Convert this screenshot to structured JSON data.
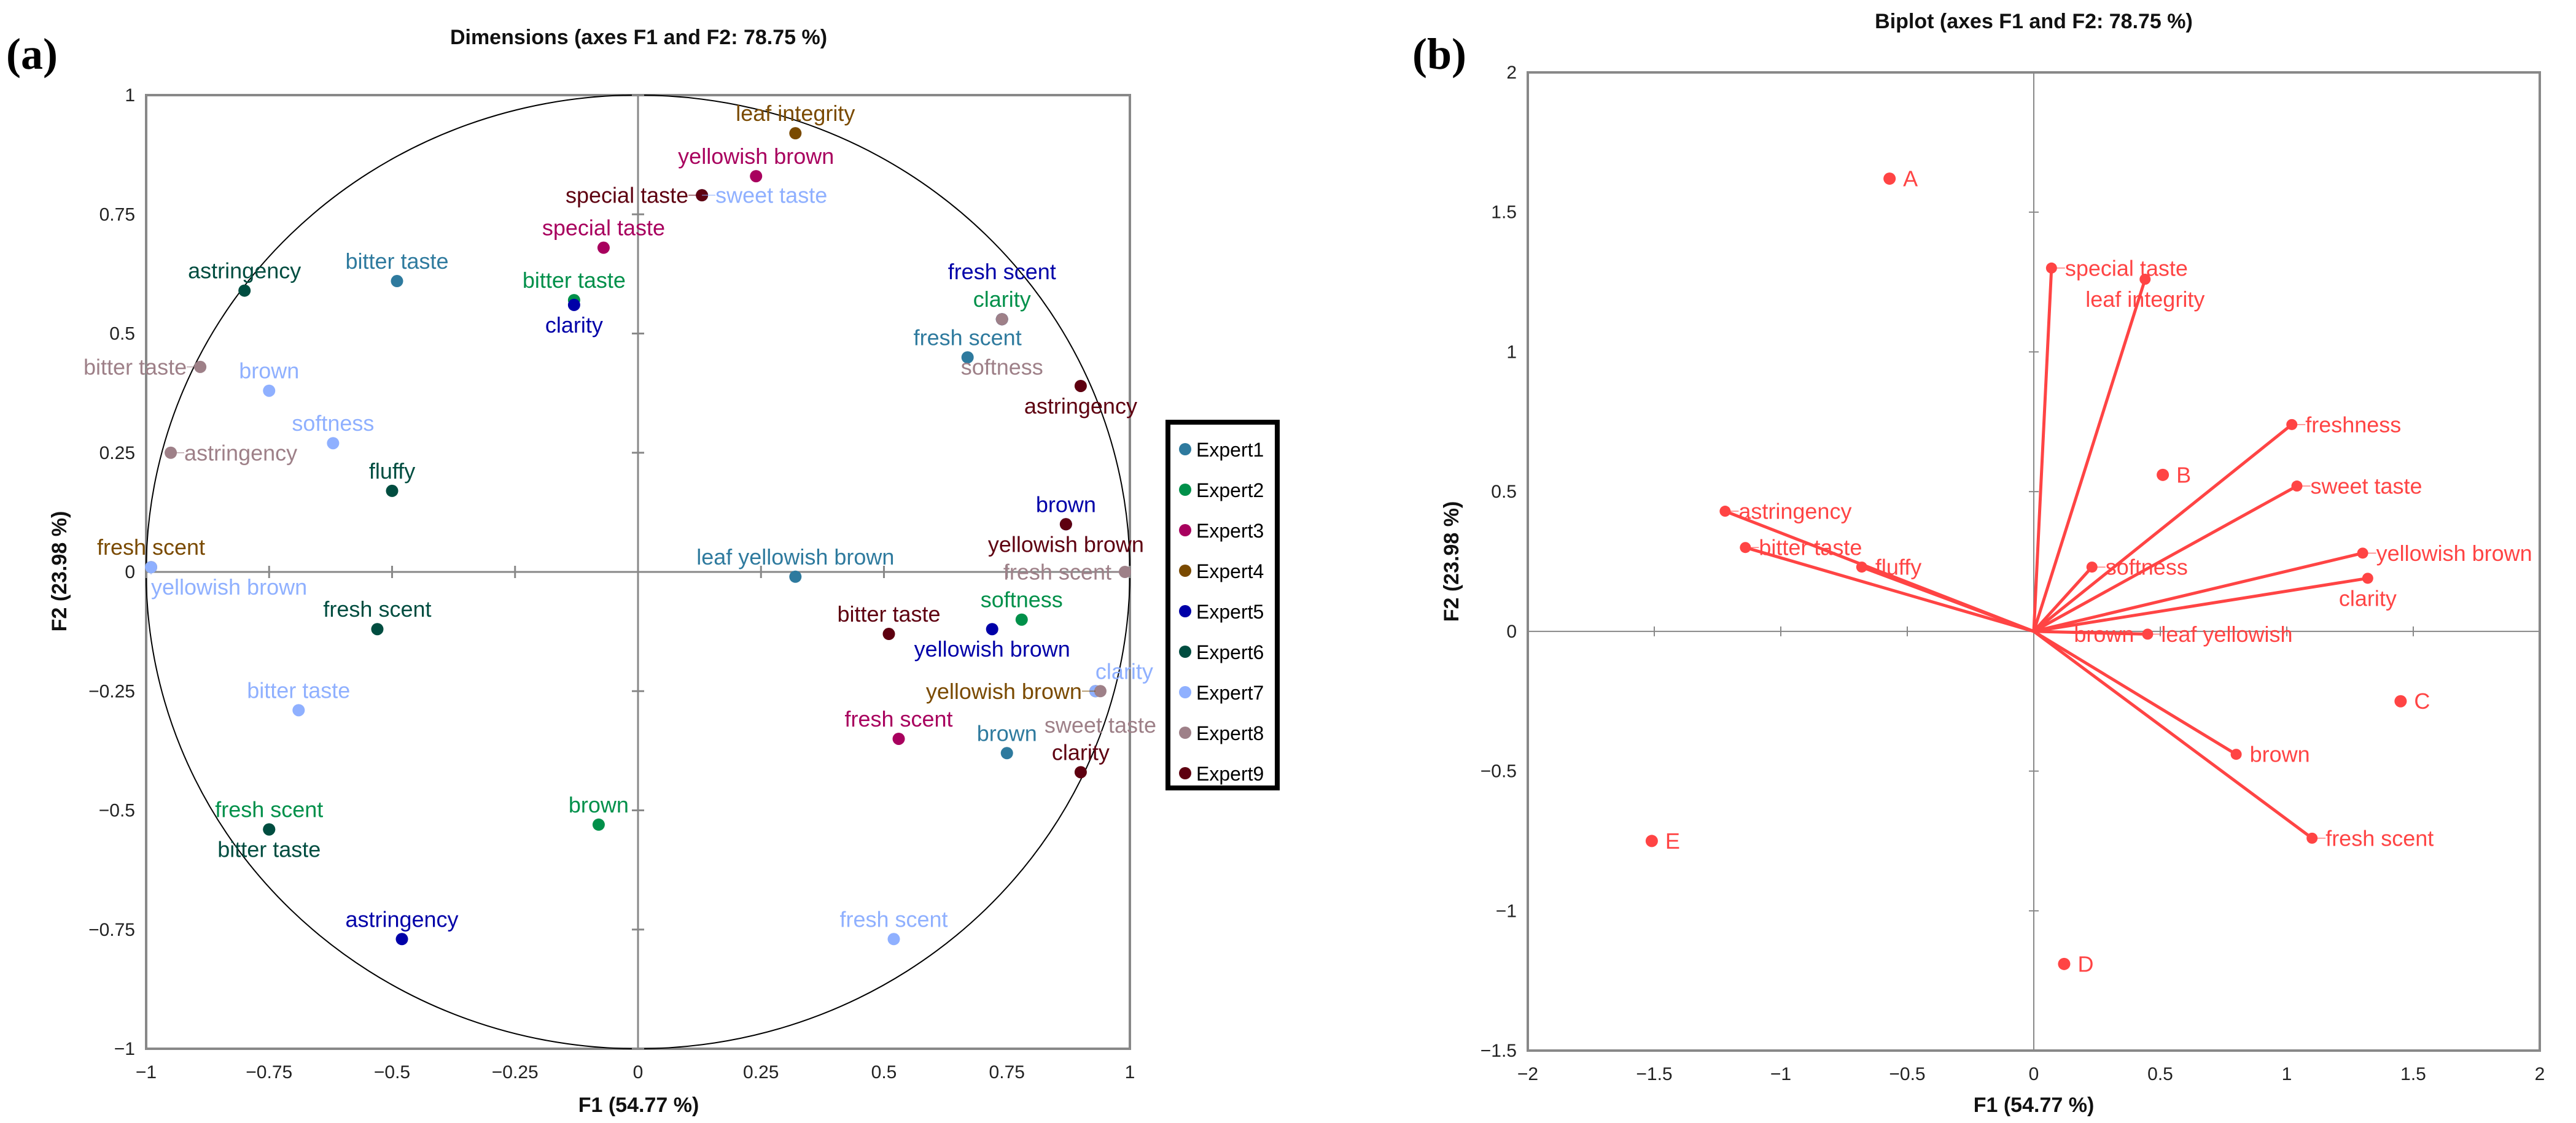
{
  "chart_data": [
    {
      "type": "scatter",
      "panel_label": "(a)",
      "title": "Dimensions (axes F1 and F2: 78.75 %)",
      "xlabel": "F1 (54.77 %)",
      "ylabel": "F2 (23.98 %)",
      "xlim": [
        -1,
        1
      ],
      "ylim": [
        -1,
        1
      ],
      "xticks": [
        "-1",
        "-0.75",
        "-0.5",
        "-0.25",
        "0",
        "0.25",
        "0.5",
        "0.75",
        "1"
      ],
      "yticks": [
        "-1",
        "-0.75",
        "-0.5",
        "-0.25",
        "0",
        "0.25",
        "0.5",
        "0.75",
        "1"
      ],
      "correlation_circle": true,
      "legend_position": "right",
      "series": [
        {
          "name": "Expert1",
          "color": "#2e7a9e",
          "points": [
            {
              "label": "bitter taste",
              "x": -0.49,
              "y": 0.61
            },
            {
              "label": "fresh scent",
              "x": 0.67,
              "y": 0.45
            },
            {
              "label": "leaf yellowish brown",
              "x": 0.32,
              "y": -0.01
            },
            {
              "label": "brown",
              "x": 0.75,
              "y": -0.38
            }
          ]
        },
        {
          "name": "Expert2",
          "color": "#00904a",
          "points": [
            {
              "label": "bitter taste",
              "x": -0.13,
              "y": 0.57
            },
            {
              "label": "clarity",
              "x": 0.74,
              "y": 0.53
            },
            {
              "label": "softness",
              "x": 0.78,
              "y": -0.1
            },
            {
              "label": "brown",
              "x": -0.08,
              "y": -0.53
            },
            {
              "label": "fresh scent",
              "x": -0.75,
              "y": -0.54
            }
          ]
        },
        {
          "name": "Expert3",
          "color": "#a8005e",
          "points": [
            {
              "label": "special taste",
              "x": -0.07,
              "y": 0.68
            },
            {
              "label": "yellowish brown",
              "x": 0.24,
              "y": 0.83
            },
            {
              "label": "fresh scent",
              "x": 0.53,
              "y": -0.35
            }
          ]
        },
        {
          "name": "Expert4",
          "color": "#7a4a00",
          "points": [
            {
              "label": "leaf integrity",
              "x": 0.32,
              "y": 0.92
            },
            {
              "label": "yellowish brown",
              "x": 0.93,
              "y": -0.25
            },
            {
              "label": "fresh scent",
              "x": -0.99,
              "y": 0.01
            }
          ]
        },
        {
          "name": "Expert5",
          "color": "#0000a8",
          "points": [
            {
              "label": "clarity",
              "x": -0.13,
              "y": 0.56
            },
            {
              "label": "fresh scent",
              "x": 0.74,
              "y": 0.53
            },
            {
              "label": "brown",
              "x": 0.87,
              "y": 0.1
            },
            {
              "label": "yellowish brown",
              "x": 0.72,
              "y": -0.12
            },
            {
              "label": "astringency",
              "x": -0.48,
              "y": -0.77
            }
          ]
        },
        {
          "name": "Expert6",
          "color": "#004d40",
          "points": [
            {
              "label": "astringency",
              "x": -0.8,
              "y": 0.59
            },
            {
              "label": "fluffy",
              "x": -0.5,
              "y": 0.17
            },
            {
              "label": "fresh scent",
              "x": -0.53,
              "y": -0.12
            },
            {
              "label": "bitter taste",
              "x": -0.75,
              "y": -0.54
            }
          ]
        },
        {
          "name": "Expert7",
          "color": "#8fb0ff",
          "points": [
            {
              "label": "sweet taste",
              "x": 0.13,
              "y": 0.79
            },
            {
              "label": "brown",
              "x": -0.75,
              "y": 0.38
            },
            {
              "label": "softness",
              "x": -0.62,
              "y": 0.27
            },
            {
              "label": "yellowish brown",
              "x": -0.99,
              "y": 0.01
            },
            {
              "label": "bitter taste",
              "x": -0.69,
              "y": -0.29
            },
            {
              "label": "clarity",
              "x": 0.93,
              "y": -0.25
            },
            {
              "label": "fresh scent",
              "x": 0.52,
              "y": -0.77
            }
          ]
        },
        {
          "name": "Expert8",
          "color": "#9e8088",
          "points": [
            {
              "label": "bitter taste",
              "x": -0.89,
              "y": 0.43
            },
            {
              "label": "astringency",
              "x": -0.95,
              "y": 0.25
            },
            {
              "label": "softness",
              "x": 0.74,
              "y": 0.53
            },
            {
              "label": "fresh scent",
              "x": 0.99,
              "y": 0.0
            },
            {
              "label": "sweet taste",
              "x": 0.94,
              "y": -0.25
            }
          ]
        },
        {
          "name": "Expert9",
          "color": "#5e0010",
          "points": [
            {
              "label": "special taste",
              "x": 0.13,
              "y": 0.79
            },
            {
              "label": "astringency",
              "x": 0.9,
              "y": 0.39
            },
            {
              "label": "yellowish brown",
              "x": 0.87,
              "y": 0.1
            },
            {
              "label": "bitter taste",
              "x": 0.51,
              "y": -0.13
            },
            {
              "label": "clarity",
              "x": 0.9,
              "y": -0.42
            }
          ]
        }
      ]
    },
    {
      "type": "biplot",
      "panel_label": "(b)",
      "title": "Biplot (axes F1 and F2: 78.75 %)",
      "xlabel": "F1 (54.77 %)",
      "ylabel": "F2 (23.98 %)",
      "xlim": [
        -2,
        2
      ],
      "ylim": [
        -1.5,
        2
      ],
      "xticks": [
        "-2",
        "-1.5",
        "-1",
        "-0.5",
        "0",
        "0.5",
        "1",
        "1.5",
        "2"
      ],
      "yticks": [
        "-1.5",
        "-1",
        "-0.5",
        "0",
        "0.5",
        "1",
        "1.5",
        "2"
      ],
      "color": "#ff4444",
      "variables": [
        {
          "label": "special taste",
          "x": 0.07,
          "y": 1.3
        },
        {
          "label": "leaf integrity",
          "x": 0.44,
          "y": 1.26
        },
        {
          "label": "freshness",
          "x": 1.02,
          "y": 0.74
        },
        {
          "label": "sweet taste",
          "x": 1.04,
          "y": 0.52
        },
        {
          "label": "yellowish brown",
          "x": 1.3,
          "y": 0.28
        },
        {
          "label": "clarity",
          "x": 1.32,
          "y": 0.19
        },
        {
          "label": "softness",
          "x": 0.23,
          "y": 0.23
        },
        {
          "label": "leaf yellowish",
          "label2": "brown",
          "x": 0.45,
          "y": -0.01
        },
        {
          "label": "brown",
          "x": 0.8,
          "y": -0.44
        },
        {
          "label": "fresh scent",
          "x": 1.1,
          "y": -0.74
        },
        {
          "label": "astringency",
          "x": -1.22,
          "y": 0.43
        },
        {
          "label": "bitter taste",
          "x": -1.14,
          "y": 0.3
        },
        {
          "label": "fluffy",
          "x": -0.68,
          "y": 0.23
        }
      ],
      "observations": [
        {
          "label": "A",
          "x": -0.57,
          "y": 1.62
        },
        {
          "label": "B",
          "x": 0.51,
          "y": 0.56
        },
        {
          "label": "C",
          "x": 1.45,
          "y": -0.25
        },
        {
          "label": "D",
          "x": 0.12,
          "y": -1.19
        },
        {
          "label": "E",
          "x": -1.51,
          "y": -0.75
        }
      ]
    }
  ]
}
